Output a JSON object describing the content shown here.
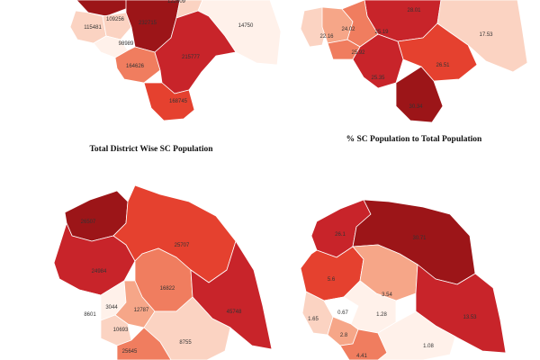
{
  "colors": {
    "c1": "#9c1518",
    "c2": "#c8242a",
    "c3": "#e5412f",
    "c4": "#f07d5f",
    "c5": "#f6a688",
    "c6": "#fbd3c2",
    "c7": "#fff1ea",
    "c8": "#ffffff"
  },
  "captions": {
    "total": "Total District Wise SC Population",
    "percent": "% SC Population to Total Population"
  },
  "maps": {
    "total_sc": {
      "labels": [
        "122609",
        "109256",
        "115481",
        "232715",
        "98989",
        "14750",
        "164626",
        "215777",
        "168745"
      ]
    },
    "pct_sc": {
      "labels": [
        "28.01",
        "24.02",
        "22.16",
        "25.19",
        "25.92",
        "17.53",
        "26.51",
        "25.35",
        "30.34"
      ]
    },
    "bottom_left": {
      "labels": [
        "26507",
        "24984",
        "25707",
        "16822",
        "8601",
        "3044",
        "12787",
        "10693",
        "45748",
        "8755",
        "25645"
      ]
    },
    "bottom_right": {
      "labels": [
        "26.1",
        "30.71",
        "5.6",
        "3.54",
        "1.65",
        "0.67",
        "1.28",
        "13.53",
        "2.8",
        "4.41",
        "1.08"
      ]
    }
  }
}
